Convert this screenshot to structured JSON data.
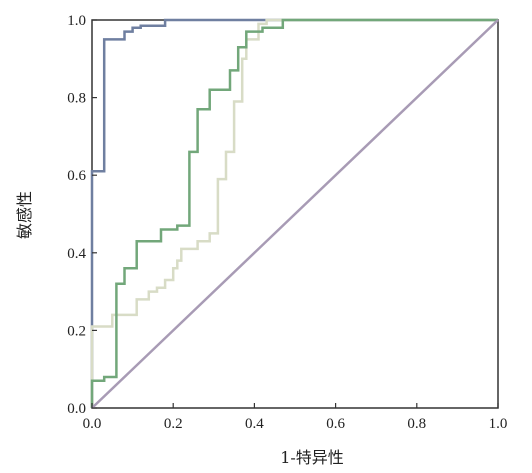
{
  "chart_data": {
    "type": "line",
    "title": "",
    "xlabel": "1-特异性",
    "ylabel": "敏感性",
    "xlim": [
      0,
      1
    ],
    "ylim": [
      0,
      1
    ],
    "xticks": [
      "0.0",
      "0.2",
      "0.4",
      "0.6",
      "0.8",
      "1.0"
    ],
    "yticks": [
      "0.0",
      "0.2",
      "0.4",
      "0.6",
      "0.8",
      "1.0"
    ],
    "grid": false,
    "series": [
      {
        "color": "#6f7fa0",
        "x": [
          0,
          0,
          0.03,
          0.03,
          0.08,
          0.08,
          0.1,
          0.1,
          0.12,
          0.12,
          0.18,
          0.18,
          1.0
        ],
        "y": [
          0,
          0.61,
          0.61,
          0.95,
          0.95,
          0.97,
          0.97,
          0.98,
          0.98,
          0.985,
          0.985,
          1.0,
          1.0
        ]
      },
      {
        "color": "#d8dcc6",
        "x": [
          0,
          0,
          0.05,
          0.05,
          0.11,
          0.11,
          0.14,
          0.14,
          0.16,
          0.16,
          0.18,
          0.18,
          0.2,
          0.2,
          0.21,
          0.21,
          0.22,
          0.22,
          0.26,
          0.26,
          0.29,
          0.29,
          0.31,
          0.31,
          0.33,
          0.33,
          0.35,
          0.35,
          0.37,
          0.37,
          0.38,
          0.38,
          0.41,
          0.41,
          0.43,
          0.43,
          1.0
        ],
        "y": [
          0,
          0.21,
          0.21,
          0.24,
          0.24,
          0.28,
          0.28,
          0.3,
          0.3,
          0.31,
          0.31,
          0.33,
          0.33,
          0.36,
          0.36,
          0.38,
          0.38,
          0.41,
          0.41,
          0.43,
          0.43,
          0.45,
          0.45,
          0.59,
          0.59,
          0.66,
          0.66,
          0.79,
          0.79,
          0.9,
          0.9,
          0.95,
          0.95,
          0.99,
          0.99,
          1.0,
          1.0
        ]
      },
      {
        "color": "#72a77a",
        "x": [
          0,
          0,
          0.03,
          0.03,
          0.06,
          0.06,
          0.08,
          0.08,
          0.11,
          0.11,
          0.17,
          0.17,
          0.21,
          0.21,
          0.24,
          0.24,
          0.26,
          0.26,
          0.29,
          0.29,
          0.34,
          0.34,
          0.36,
          0.36,
          0.38,
          0.38,
          0.42,
          0.42,
          0.47,
          0.47,
          1.0
        ],
        "y": [
          0,
          0.07,
          0.07,
          0.08,
          0.08,
          0.32,
          0.32,
          0.36,
          0.36,
          0.43,
          0.43,
          0.46,
          0.46,
          0.47,
          0.47,
          0.66,
          0.66,
          0.77,
          0.77,
          0.82,
          0.82,
          0.87,
          0.87,
          0.93,
          0.93,
          0.97,
          0.97,
          0.98,
          0.98,
          1.0,
          1.0
        ]
      },
      {
        "color": "#a89bb5",
        "x": [
          0,
          1
        ],
        "y": [
          0,
          1
        ]
      }
    ]
  }
}
